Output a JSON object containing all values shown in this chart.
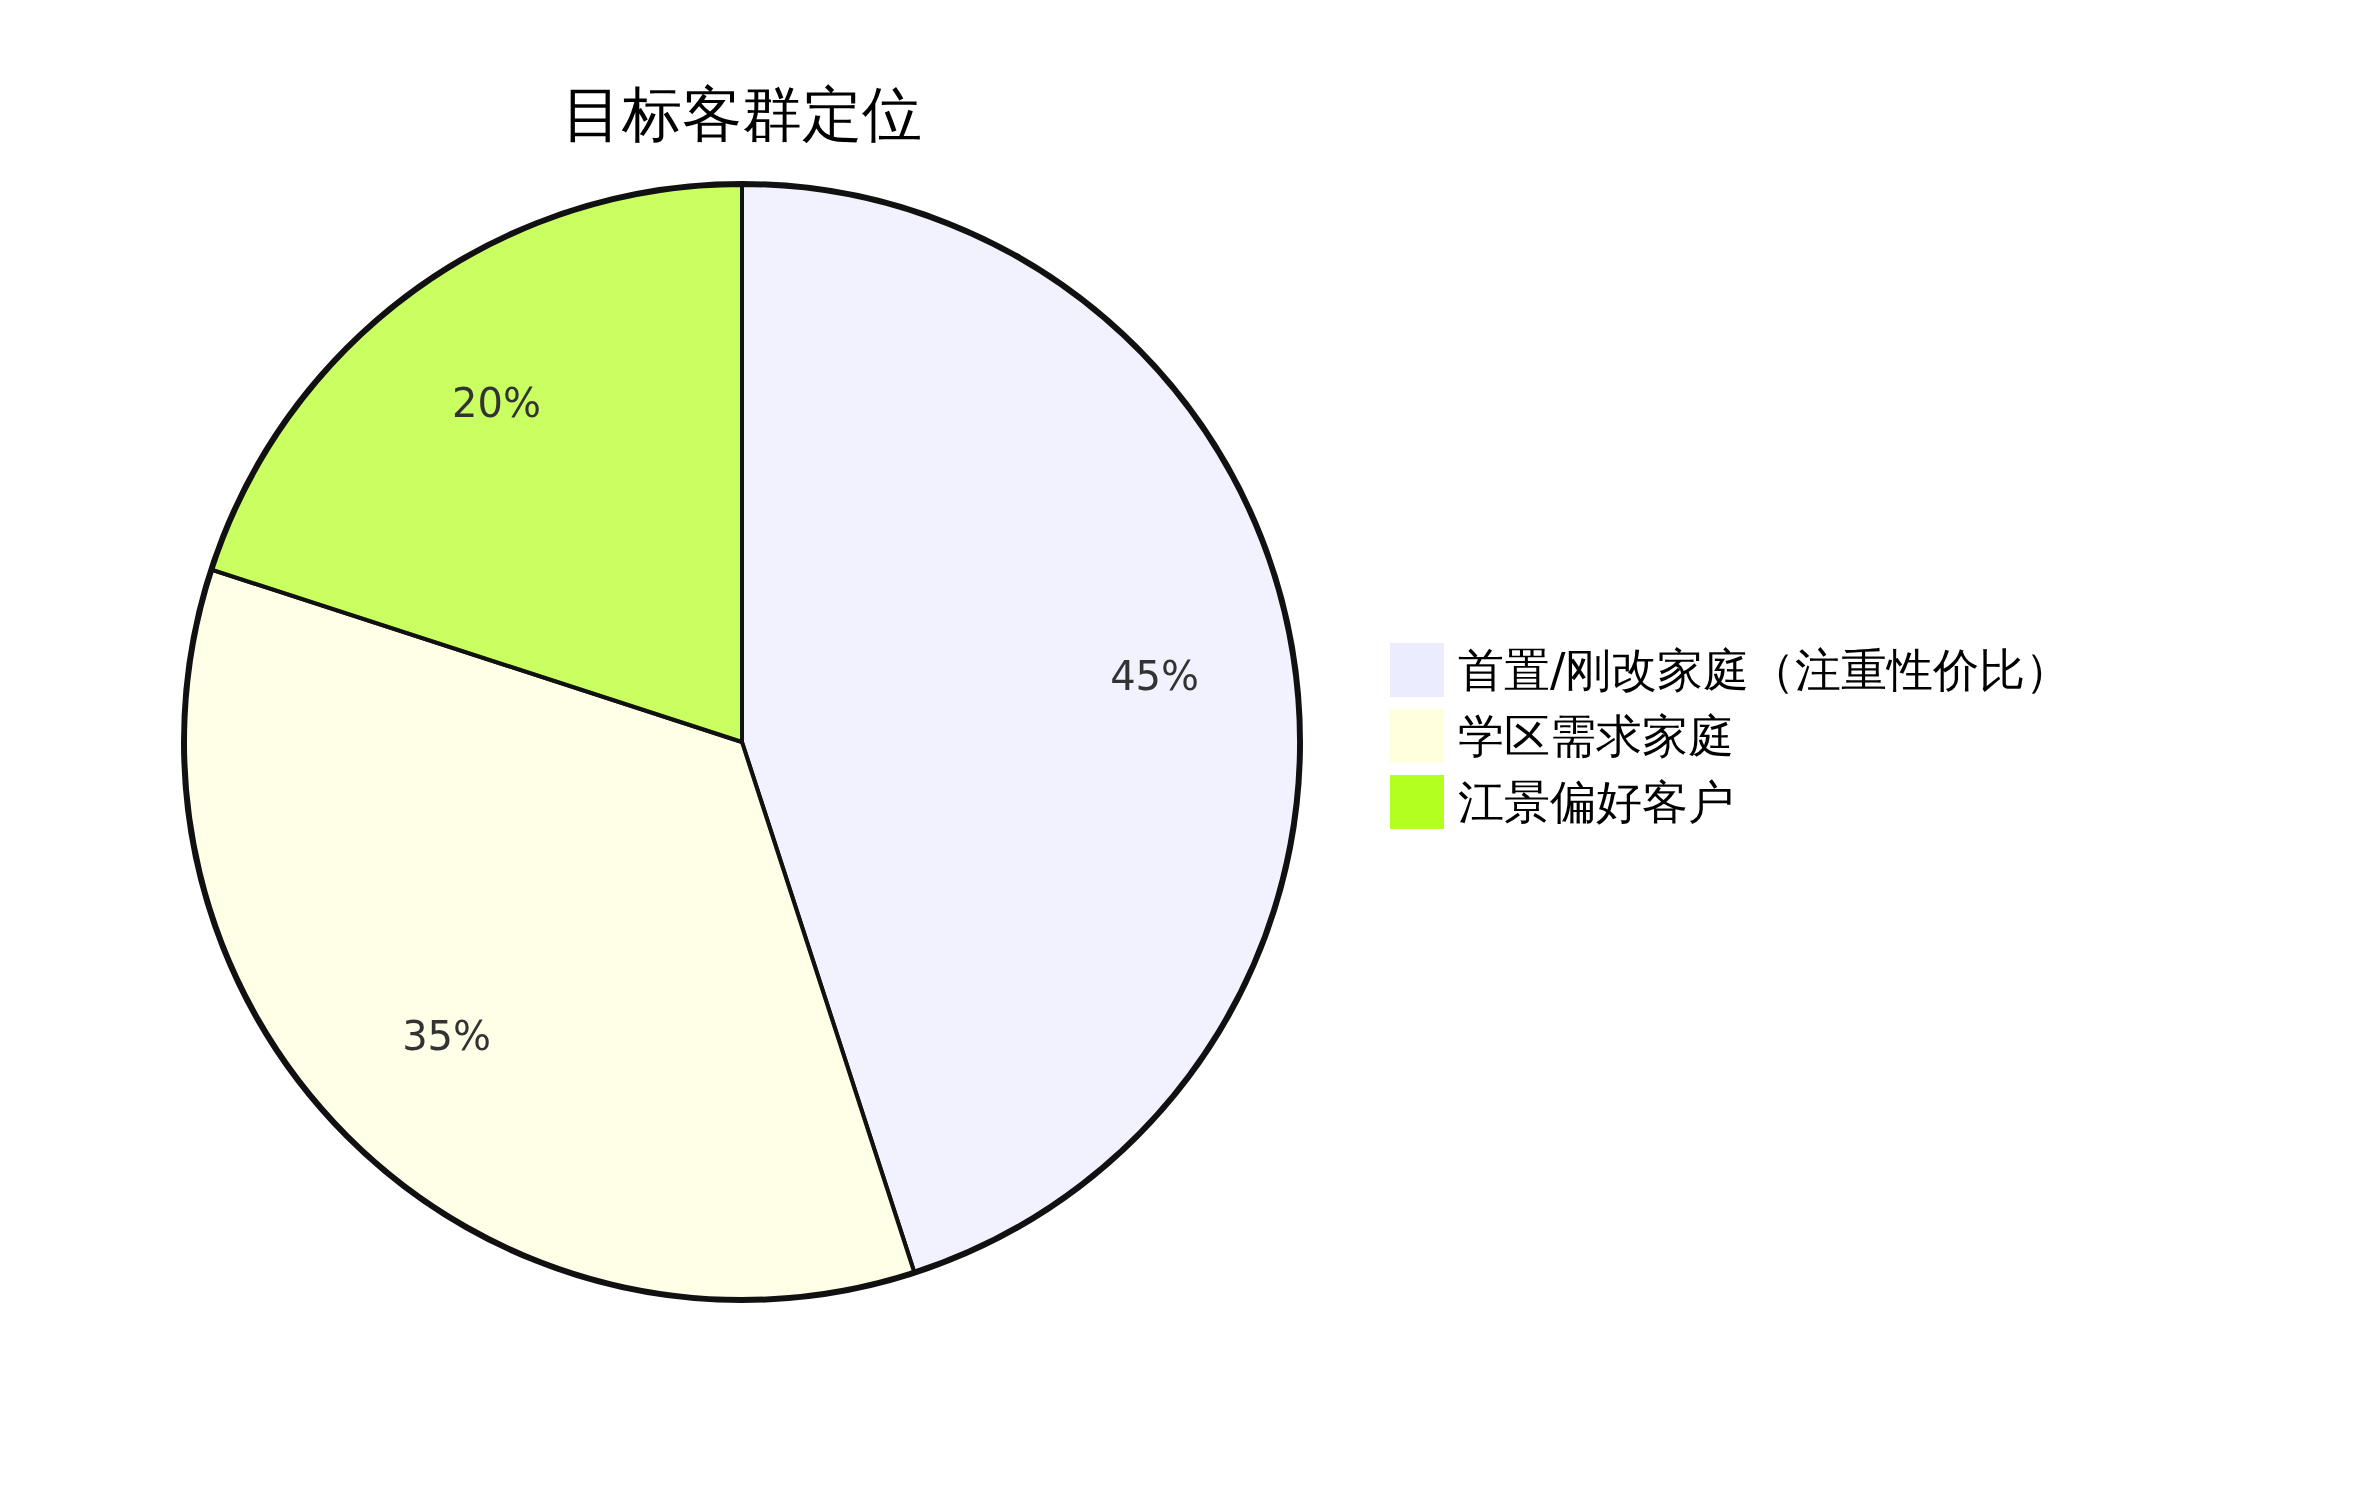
{
  "chart_data": {
    "type": "pie",
    "title": "目标客群定位",
    "categories": [
      "首置/刚改家庭（注重性价比）",
      "学区需求家庭",
      "江景偏好客户"
    ],
    "values": [
      45,
      35,
      20
    ],
    "colors": [
      "#ececff",
      "#ffffde",
      "#b3ff1f"
    ],
    "value_labels": [
      "45%",
      "35%",
      "20%"
    ],
    "legend": "right"
  }
}
